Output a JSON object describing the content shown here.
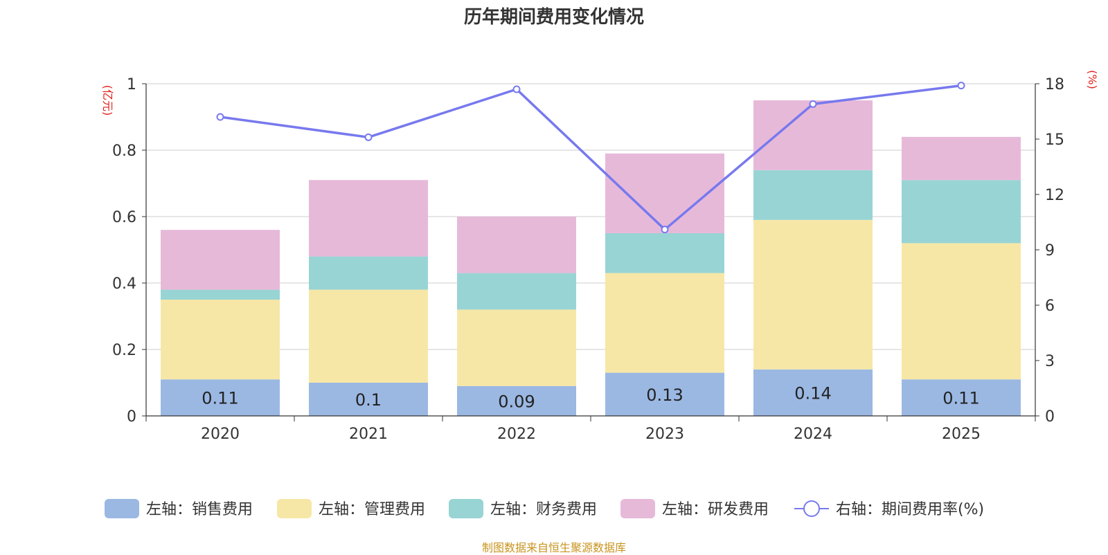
{
  "page": {
    "title": "历年期间费用变化情况",
    "source": "制图数据来自恒生聚源数据库"
  },
  "chart_data": {
    "type": "bar",
    "stacked": true,
    "title": "历年期间费用变化情况",
    "categories": [
      "2020",
      "2021",
      "2022",
      "2023",
      "2024",
      "2025"
    ],
    "left_axis": {
      "unit": "(亿元)",
      "range": [
        0,
        1
      ],
      "ticks": [
        "0",
        "0.2",
        "0.4",
        "0.6",
        "0.8",
        "1"
      ]
    },
    "right_axis": {
      "unit": "(%)",
      "range": [
        0,
        18
      ],
      "ticks": [
        "0",
        "3",
        "6",
        "9",
        "12",
        "15",
        "18"
      ]
    },
    "series": [
      {
        "name": "左轴：销售费用",
        "type": "bar",
        "axis": "left",
        "color": "#9bb8e3",
        "values": [
          0.11,
          0.1,
          0.09,
          0.13,
          0.14,
          0.11
        ],
        "labels": [
          "0.11",
          "0.1",
          "0.09",
          "0.13",
          "0.14",
          "0.11"
        ]
      },
      {
        "name": "左轴：管理费用",
        "type": "bar",
        "axis": "left",
        "color": "#f7e7a6",
        "values": [
          0.24,
          0.28,
          0.23,
          0.3,
          0.45,
          0.41
        ]
      },
      {
        "name": "左轴：财务费用",
        "type": "bar",
        "axis": "left",
        "color": "#98d4d4",
        "values": [
          0.03,
          0.1,
          0.11,
          0.12,
          0.15,
          0.19
        ]
      },
      {
        "name": "左轴：研发费用",
        "type": "bar",
        "axis": "left",
        "color": "#e7b9d9",
        "values": [
          0.18,
          0.23,
          0.17,
          0.24,
          0.21,
          0.13
        ]
      },
      {
        "name": "右轴：期间费用率(%)",
        "type": "line",
        "axis": "right",
        "color": "#7779ee",
        "values": [
          16.2,
          15.1,
          17.7,
          10.1,
          16.9,
          17.9
        ]
      }
    ],
    "legend_position": "bottom",
    "grid": true
  }
}
